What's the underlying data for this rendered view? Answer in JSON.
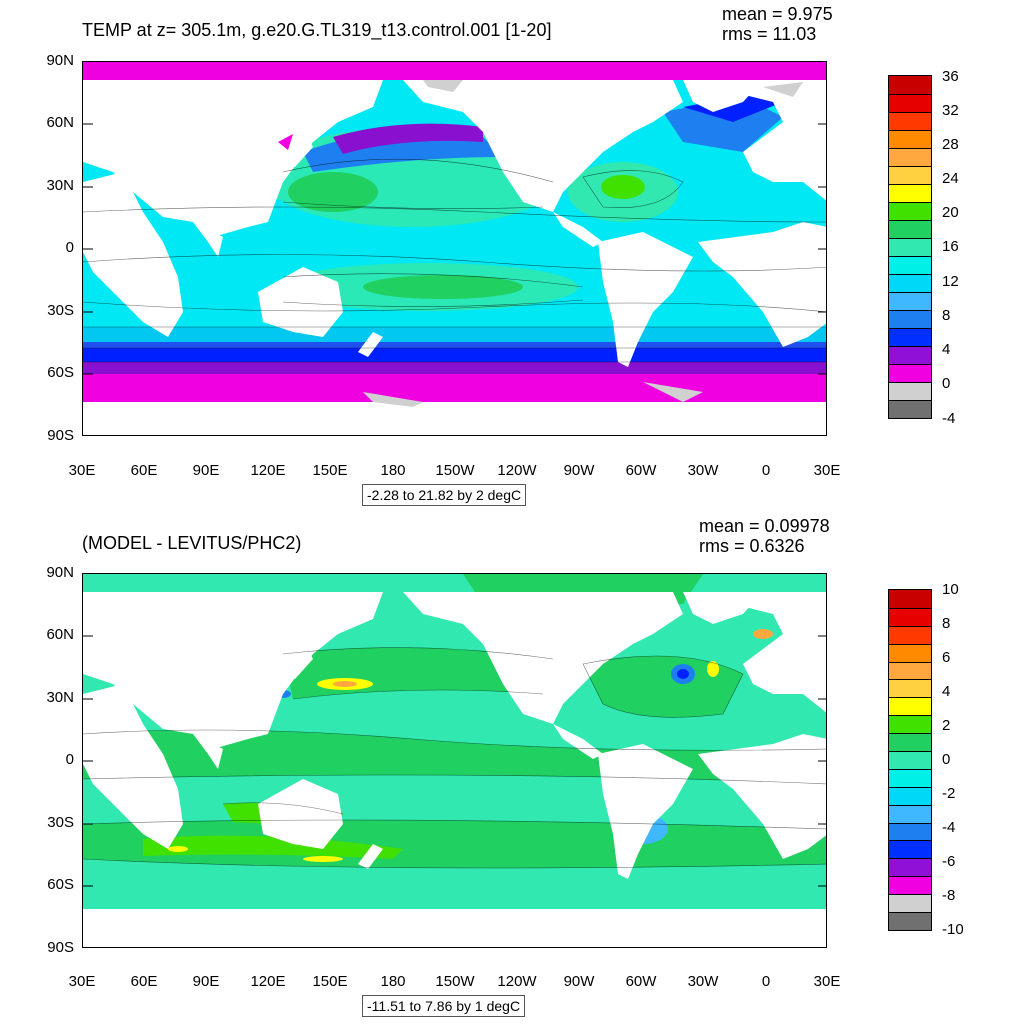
{
  "top_panel": {
    "title": "TEMP at z= 305.1m, g.e20.G.TL319_t13.control.001 [1-20]",
    "stat_mean": "mean = 9.975",
    "stat_rms": "rms = 11.03",
    "contour_info": "-2.28 to 21.82 by 2 degC",
    "lat_labels": [
      "90N",
      "60N",
      "30N",
      "0",
      "30S",
      "60S",
      "90S"
    ],
    "lon_labels": [
      "30E",
      "60E",
      "90E",
      "120E",
      "150E",
      "180",
      "150W",
      "120W",
      "90W",
      "60W",
      "30W",
      "0",
      "30E"
    ],
    "colorbar_labels": [
      "36",
      "32",
      "28",
      "24",
      "20",
      "16",
      "12",
      "8",
      "4",
      "0",
      "-4"
    ],
    "colorbar_colors": [
      "#c80000",
      "#e60000",
      "#ff3a00",
      "#ff8a00",
      "#ffa840",
      "#ffd040",
      "#ffff00",
      "#40e000",
      "#20d060",
      "#30e8b0",
      "#00f0e8",
      "#00d8f8",
      "#40b8ff",
      "#1e80f0",
      "#0030ff",
      "#9010d8",
      "#f000e0",
      "#d0d0d0",
      "#707070"
    ]
  },
  "bottom_panel": {
    "title": "(MODEL - LEVITUS/PHC2)",
    "stat_mean": "mean = 0.09978",
    "stat_rms": "rms = 0.6326",
    "contour_info": "-11.51 to 7.86 by 1 degC",
    "lat_labels": [
      "90N",
      "60N",
      "30N",
      "0",
      "30S",
      "60S",
      "90S"
    ],
    "lon_labels": [
      "30E",
      "60E",
      "90E",
      "120E",
      "150E",
      "180",
      "150W",
      "120W",
      "90W",
      "60W",
      "30W",
      "0",
      "30E"
    ],
    "colorbar_labels": [
      "10",
      "8",
      "6",
      "4",
      "2",
      "0",
      "-2",
      "-4",
      "-6",
      "-8",
      "-10"
    ],
    "colorbar_colors": [
      "#c80000",
      "#e60000",
      "#ff3a00",
      "#ff8a00",
      "#ffa840",
      "#ffd040",
      "#ffff00",
      "#40e000",
      "#20d060",
      "#30e8b0",
      "#00f0e8",
      "#00d8f8",
      "#40b8ff",
      "#1e80f0",
      "#0030ff",
      "#9010d8",
      "#f000e0",
      "#d0d0d0",
      "#707070"
    ]
  }
}
